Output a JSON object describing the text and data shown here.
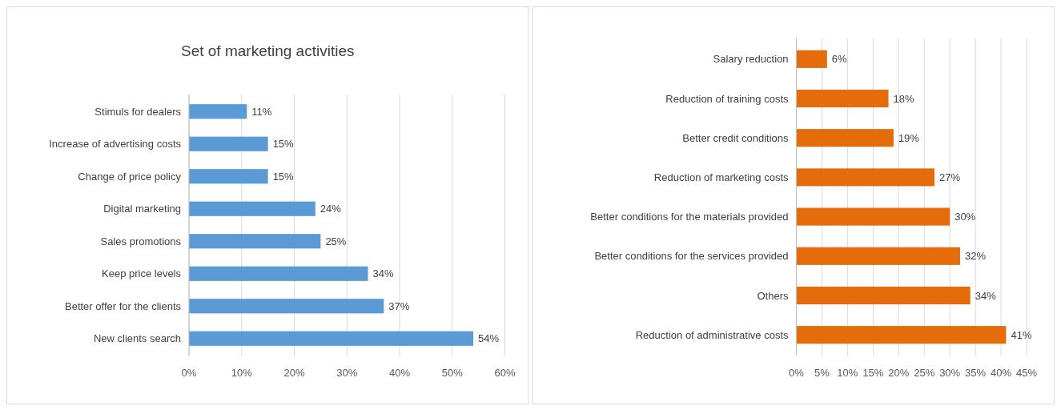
{
  "chart_data": [
    {
      "type": "bar",
      "orientation": "horizontal",
      "title": "Set of marketing activities",
      "categories": [
        "Stimuls for dealers",
        "Increase of advertising costs",
        "Change of price policy",
        "Digital marketing",
        "Sales promotions",
        "Keep price levels",
        "Better offer for the clients",
        "New clients search"
      ],
      "values": [
        11,
        15,
        15,
        24,
        25,
        34,
        37,
        54
      ],
      "color": "#5b9bd5",
      "value_labels": [
        "11%",
        "15%",
        "15%",
        "24%",
        "25%",
        "34%",
        "37%",
        "54%"
      ],
      "xlim": [
        0,
        60
      ],
      "xticks": [
        {
          "value": 0,
          "label": "0%"
        },
        {
          "value": 10,
          "label": "10%"
        },
        {
          "value": 20,
          "label": "20%"
        },
        {
          "value": 30,
          "label": "30%"
        },
        {
          "value": 40,
          "label": "40%"
        },
        {
          "value": 50,
          "label": "50%"
        },
        {
          "value": 60,
          "label": "60%"
        }
      ],
      "grid": "x"
    },
    {
      "type": "bar",
      "orientation": "horizontal",
      "categories": [
        "Salary reduction",
        "Reduction of training costs",
        "Better credit conditions",
        "Reduction of marketing costs",
        "Better conditions for the materials provided",
        "Better conditions for the services provided",
        "Others",
        "Reduction of administrative costs"
      ],
      "values": [
        6,
        18,
        19,
        27,
        30,
        32,
        34,
        41
      ],
      "color": "#e46c0a",
      "value_labels": [
        "6%",
        "18%",
        "19%",
        "27%",
        "30%",
        "32%",
        "34%",
        "41%"
      ],
      "xlim": [
        0,
        45
      ],
      "xticks": [
        {
          "value": 0,
          "label": "0%"
        },
        {
          "value": 5,
          "label": "5%"
        },
        {
          "value": 10,
          "label": "10%"
        },
        {
          "value": 15,
          "label": "15%"
        },
        {
          "value": 20,
          "label": "20%"
        },
        {
          "value": 25,
          "label": "25%"
        },
        {
          "value": 30,
          "label": "30%"
        },
        {
          "value": 35,
          "label": "35%"
        },
        {
          "value": 40,
          "label": "40%"
        },
        {
          "value": 45,
          "label": "45%"
        }
      ],
      "grid": "x"
    }
  ]
}
